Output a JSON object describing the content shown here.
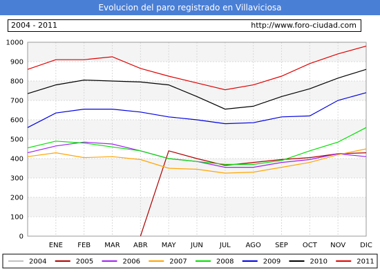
{
  "header": {
    "title": "Evolucion del paro registrado en Villaviciosa",
    "period": "2004 - 2011",
    "url": "http://www.foro-ciudad.com"
  },
  "chart_data": {
    "type": "line",
    "title": "Evolucion del paro registrado en Villaviciosa",
    "categories": [
      "",
      "ENE",
      "FEB",
      "MAR",
      "ABR",
      "MAY",
      "JUN",
      "JUL",
      "AGO",
      "SEP",
      "OCT",
      "NOV",
      "DIC"
    ],
    "ylim": [
      0,
      1000
    ],
    "yticks": [
      0,
      100,
      200,
      300,
      400,
      500,
      600,
      700,
      800,
      900,
      1000
    ],
    "grid": true,
    "legend_position": "bottom",
    "series": [
      {
        "name": "2004",
        "color": "#c0c0c0",
        "values": [
          null,
          null,
          null,
          null,
          null,
          null,
          null,
          null,
          null,
          null,
          null,
          null,
          null
        ]
      },
      {
        "name": "2005",
        "color": "#b00000",
        "values": [
          null,
          null,
          null,
          null,
          0,
          440,
          400,
          365,
          380,
          395,
          405,
          425,
          430
        ]
      },
      {
        "name": "2006",
        "color": "#a020f0",
        "values": [
          430,
          465,
          485,
          475,
          440,
          400,
          385,
          355,
          355,
          380,
          395,
          425,
          410
        ]
      },
      {
        "name": "2007",
        "color": "#ffa500",
        "values": [
          410,
          430,
          405,
          410,
          395,
          350,
          345,
          325,
          330,
          355,
          380,
          420,
          450
        ]
      },
      {
        "name": "2008",
        "color": "#00e000",
        "values": [
          455,
          490,
          480,
          460,
          440,
          400,
          385,
          370,
          370,
          390,
          440,
          485,
          560
        ]
      },
      {
        "name": "2009",
        "color": "#0000e0",
        "values": [
          560,
          635,
          655,
          655,
          640,
          615,
          600,
          580,
          585,
          615,
          620,
          700,
          740
        ]
      },
      {
        "name": "2010",
        "color": "#000000",
        "values": [
          735,
          780,
          805,
          800,
          795,
          780,
          720,
          655,
          670,
          720,
          760,
          815,
          860
        ]
      },
      {
        "name": "2011",
        "color": "#e00000",
        "values": [
          860,
          910,
          910,
          925,
          865,
          825,
          790,
          755,
          780,
          825,
          890,
          940,
          980
        ]
      }
    ]
  }
}
